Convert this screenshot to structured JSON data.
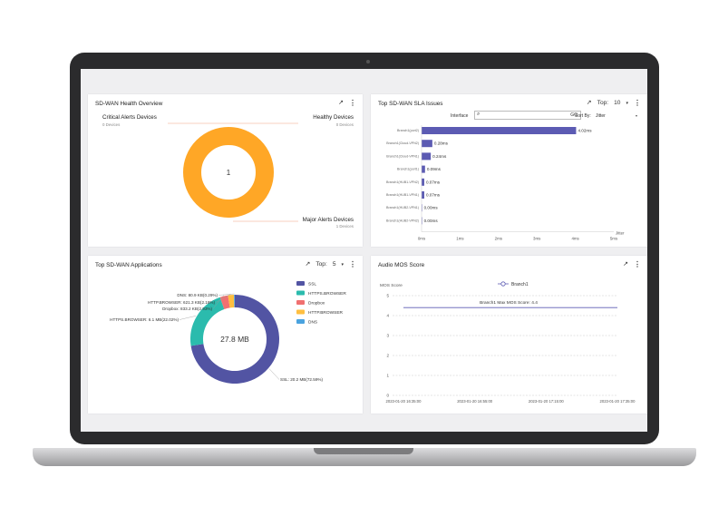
{
  "health": {
    "title": "SD-WAN Health Overview",
    "critical_label": "Critical Alerts Devices",
    "critical_sub": "0 Devices",
    "healthy_label": "Healthy Devices",
    "healthy_sub": "0 Devices",
    "major_label": "Major Alerts Devices",
    "major_sub": "1 Devices",
    "center_value": "1",
    "segments": [
      {
        "name": "Major Alerts Devices",
        "value": 1,
        "color": "#ffa726"
      }
    ]
  },
  "sla": {
    "title": "Top SD-WAN SLA Issues",
    "top_label": "Top:",
    "top_value": "10",
    "interface_label": "Interface",
    "go_label": "GO",
    "sort_label": "Sort By:",
    "sort_value": "Jitter",
    "axis_label": "Jitter",
    "bar_color": "#5c5bb3",
    "chart_data": {
      "type": "bar",
      "orientation": "horizontal",
      "categories": [
        "Branch1(port2)",
        "Branch1(Cloud-VPN2)",
        "Branch1(Cloud-VPN1)",
        "Branch1(port1)",
        "Branch1(HUB1-VPN2)",
        "Branch1(HUB1-VPN1)",
        "Branch1(HUB2-VPN1)",
        "Branch1(HUB2-VPN2)"
      ],
      "values": [
        4.02,
        0.28,
        0.24,
        0.09,
        0.07,
        0.07,
        0.0,
        0.0
      ],
      "value_labels": [
        "4.02ms",
        "0.28ms",
        "0.24ms",
        "0.09ms",
        "0.07ms",
        "0.07ms",
        "0.00ms",
        "0.00ms"
      ],
      "xticks": [
        "0ms",
        "1ms",
        "2ms",
        "3ms",
        "4ms",
        "5ms"
      ],
      "xlim": [
        0,
        5
      ],
      "xlabel": "Jitter"
    }
  },
  "apps": {
    "title": "Top SD-WAN Applications",
    "top_label": "Top:",
    "top_value": "5",
    "center_value": "27.8 MB",
    "chart_data": {
      "type": "pie",
      "labels": [
        "SSL",
        "HTTPS.BROWSER",
        "Dropbox",
        "HTTP.BROWSER",
        "DNS"
      ],
      "values": [
        72.59,
        22.02,
        2.93,
        2.18,
        0.29
      ],
      "colors": [
        "#5254a3",
        "#2bbbad",
        "#f07070",
        "#ffbf40",
        "#4aa3df"
      ],
      "annotations": [
        "SSL: 20.2 MB(72.59%)",
        "HTTPS.BROWSER: 6.1 MB(22.02%)",
        "Dropbox: 833.2 KB(2.93%)",
        "HTTP.BROWSER: 621.3 KB(2.18%)",
        "DNS: 80.9 KB(0.29%)"
      ]
    }
  },
  "mos": {
    "title": "Audio MOS Score",
    "ylabel": "MOS Score",
    "legend": "Branch1",
    "line_label": "Branch1 Max MOS Score: 4.4",
    "line_color": "#5c5bb3",
    "chart_data": {
      "type": "line",
      "series": [
        {
          "name": "Branch1",
          "constant": 4.4
        }
      ],
      "yticks": [
        "0",
        "1",
        "2",
        "3",
        "4",
        "5"
      ],
      "ylim": [
        0,
        5
      ],
      "xticks": [
        "2023-01-20 16:35:00",
        "2023-01-20 16:55:00",
        "2023-01-20 17:15:00",
        "2023-01-20 17:35:00"
      ]
    }
  }
}
